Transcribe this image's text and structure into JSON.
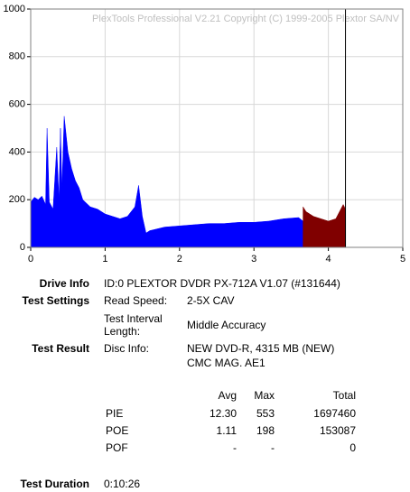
{
  "chart_data": {
    "type": "area",
    "watermark": "PlexTools Professional V2.21 Copyright (C) 1999-2005 Plextor SA/NV",
    "xlim": [
      0,
      5
    ],
    "xticks": [
      0,
      1,
      2,
      3,
      4,
      5
    ],
    "ylim": [
      0,
      1000
    ],
    "yticks": [
      0,
      200,
      400,
      600,
      800,
      1000
    ],
    "grid": true,
    "marker_line_x": 4.23,
    "series": [
      {
        "color": "#0000ff",
        "x": [
          0,
          0.05,
          0.1,
          0.15,
          0.2,
          0.22,
          0.25,
          0.3,
          0.35,
          0.38,
          0.4,
          0.42,
          0.45,
          0.5,
          0.55,
          0.6,
          0.65,
          0.7,
          0.8,
          0.9,
          1.0,
          1.1,
          1.2,
          1.3,
          1.4,
          1.45,
          1.5,
          1.55,
          1.6,
          1.8,
          2.0,
          2.2,
          2.4,
          2.6,
          2.8,
          3.0,
          3.2,
          3.4,
          3.6,
          3.7,
          3.8,
          4.0,
          4.2,
          4.23
        ],
        "values": [
          190,
          210,
          200,
          215,
          180,
          500,
          190,
          160,
          420,
          200,
          500,
          250,
          550,
          400,
          330,
          280,
          250,
          200,
          170,
          160,
          140,
          130,
          120,
          130,
          170,
          260,
          130,
          60,
          70,
          85,
          90,
          95,
          100,
          100,
          105,
          105,
          110,
          120,
          125,
          100,
          90,
          90,
          80,
          80
        ]
      },
      {
        "color": "#800000",
        "x": [
          3.66,
          3.7,
          3.8,
          3.9,
          4.0,
          4.1,
          4.2,
          4.23
        ],
        "values": [
          170,
          150,
          130,
          120,
          110,
          120,
          180,
          160
        ]
      }
    ]
  },
  "info": {
    "drive_info": {
      "label": "Drive Info",
      "value": "ID:0 PLEXTOR DVDR PX-712A V1.07 (#131644)"
    },
    "test_settings": {
      "label": "Test Settings",
      "read_speed_label": "Read Speed:",
      "read_speed": "2-5X CAV",
      "interval_label_1": "Test Interval",
      "interval_label_2": "Length:",
      "interval": "Middle Accuracy"
    },
    "test_result": {
      "label": "Test Result",
      "disc_info_label": "Disc Info:",
      "disc_info_1": "NEW DVD-R, 4315 MB (NEW)",
      "disc_info_2": "CMC MAG. AE1"
    },
    "stats": {
      "headers": [
        "Avg",
        "Max",
        "Total"
      ],
      "rows": [
        [
          "PIE",
          "12.30",
          "553",
          "1697460"
        ],
        [
          "POE",
          "1.11",
          "198",
          "153087"
        ],
        [
          "POF",
          "-",
          "-",
          "0"
        ]
      ]
    },
    "test_duration": {
      "label": "Test Duration",
      "value": "0:10:26"
    }
  }
}
